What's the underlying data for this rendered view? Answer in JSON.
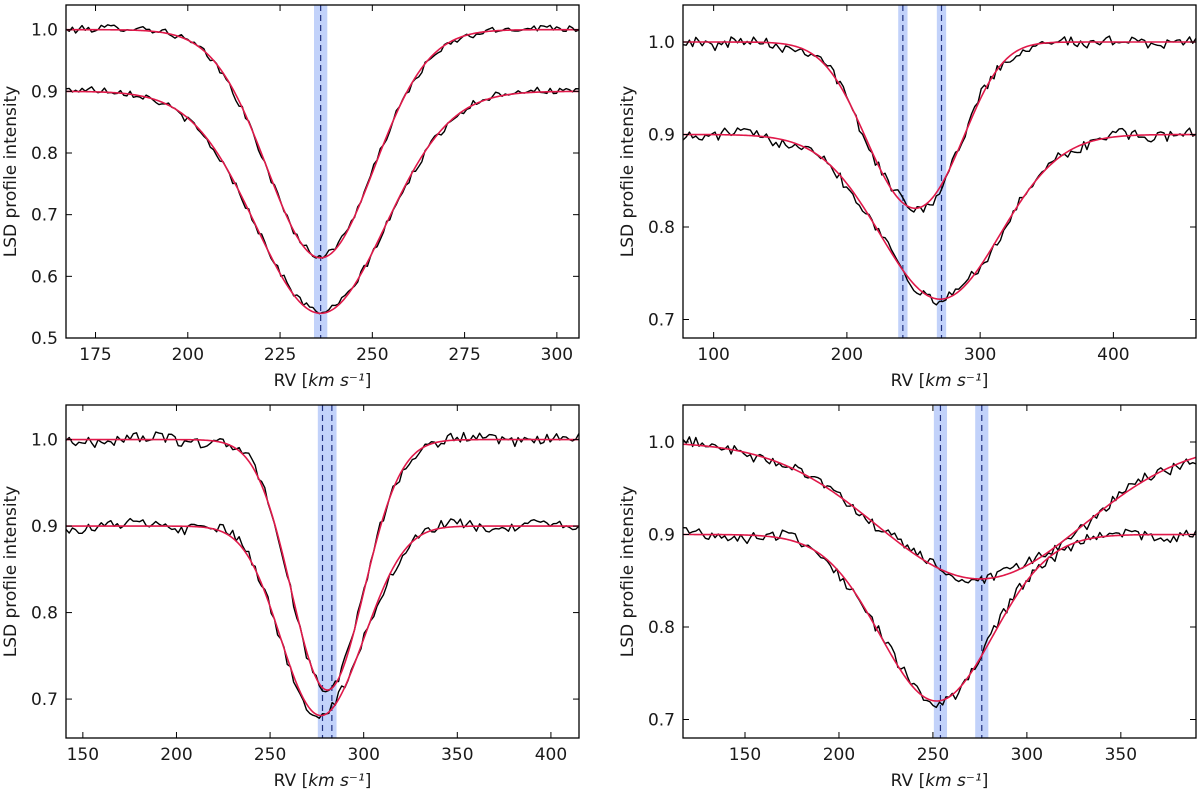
{
  "chart_data": [
    {
      "type": "line",
      "xlabel": "RV [km s⁻¹]",
      "ylabel": "LSD profile intensity",
      "xlim": [
        167,
        306
      ],
      "ylim": [
        0.5,
        1.04
      ],
      "xticks": [
        175,
        200,
        225,
        250,
        275,
        300
      ],
      "yticks": [
        0.5,
        0.6,
        0.7,
        0.8,
        0.9,
        1.0
      ],
      "profiles": [
        {
          "name": "upper",
          "continuum": 1.0,
          "components": [
            {
              "center": 236,
              "depth": 0.37,
              "sigma": 14.5
            }
          ],
          "noise": 0.006
        },
        {
          "name": "lower",
          "continuum": 0.9,
          "components": [
            {
              "center": 236,
              "depth": 0.36,
              "sigma": 17.5
            }
          ],
          "noise": 0.006
        }
      ],
      "rv_markers": [
        {
          "rv": 236,
          "halfwidth": 1.8
        }
      ]
    },
    {
      "type": "line",
      "xlabel": "RV [km s⁻¹]",
      "ylabel": "LSD profile intensity",
      "xlim": [
        77,
        462
      ],
      "ylim": [
        0.68,
        1.04
      ],
      "xticks": [
        100,
        200,
        300,
        400
      ],
      "yticks": [
        0.7,
        0.8,
        0.9,
        1.0
      ],
      "profiles": [
        {
          "name": "upper",
          "continuum": 1.0,
          "components": [
            {
              "center": 240,
              "depth": 0.145,
              "sigma": 30
            },
            {
              "center": 275,
              "depth": 0.07,
              "sigma": 25
            }
          ],
          "noise": 0.006
        },
        {
          "name": "lower",
          "continuum": 0.9,
          "components": [
            {
              "center": 270,
              "depth": 0.178,
              "sigma": 45
            }
          ],
          "noise": 0.006
        }
      ],
      "rv_markers": [
        {
          "rv": 242,
          "halfwidth": 3.5
        },
        {
          "rv": 271,
          "halfwidth": 3.5
        }
      ]
    },
    {
      "type": "line",
      "xlabel": "RV [km s⁻¹]",
      "ylabel": "LSD profile intensity",
      "xlim": [
        141,
        415
      ],
      "ylim": [
        0.655,
        1.04
      ],
      "xticks": [
        150,
        200,
        250,
        300,
        350,
        400
      ],
      "yticks": [
        0.7,
        0.8,
        0.9,
        1.0
      ],
      "profiles": [
        {
          "name": "upper",
          "continuum": 1.0,
          "components": [
            {
              "center": 276,
              "depth": 0.2,
              "sigma": 18
            },
            {
              "center": 290,
              "depth": 0.11,
              "sigma": 18
            }
          ],
          "noise": 0.006
        },
        {
          "name": "lower",
          "continuum": 0.9,
          "components": [
            {
              "center": 270,
              "depth": 0.16,
              "sigma": 18
            },
            {
              "center": 292,
              "depth": 0.1,
              "sigma": 18
            }
          ],
          "noise": 0.006
        }
      ],
      "rv_markers": [
        {
          "rv": 278,
          "halfwidth": 2.5
        },
        {
          "rv": 283,
          "halfwidth": 2.5
        }
      ]
    },
    {
      "type": "line",
      "xlabel": "RV [km s⁻¹]",
      "ylabel": "LSD profile intensity",
      "xlim": [
        117,
        390
      ],
      "ylim": [
        0.68,
        1.04
      ],
      "xticks": [
        150,
        200,
        250,
        300,
        350
      ],
      "yticks": [
        0.7,
        0.8,
        0.9,
        1.0
      ],
      "profiles": [
        {
          "name": "upper",
          "continuum": 1.0,
          "components": [
            {
              "center": 275,
              "depth": 0.148,
              "sigma": 55
            }
          ],
          "noise": 0.006
        },
        {
          "name": "lower",
          "continuum": 0.9,
          "components": [
            {
              "center": 252,
              "depth": 0.18,
              "sigma": 30
            }
          ],
          "noise": 0.006
        }
      ],
      "rv_markers": [
        {
          "rv": 254,
          "halfwidth": 3.5
        },
        {
          "rv": 276,
          "halfwidth": 3.5
        }
      ]
    }
  ]
}
